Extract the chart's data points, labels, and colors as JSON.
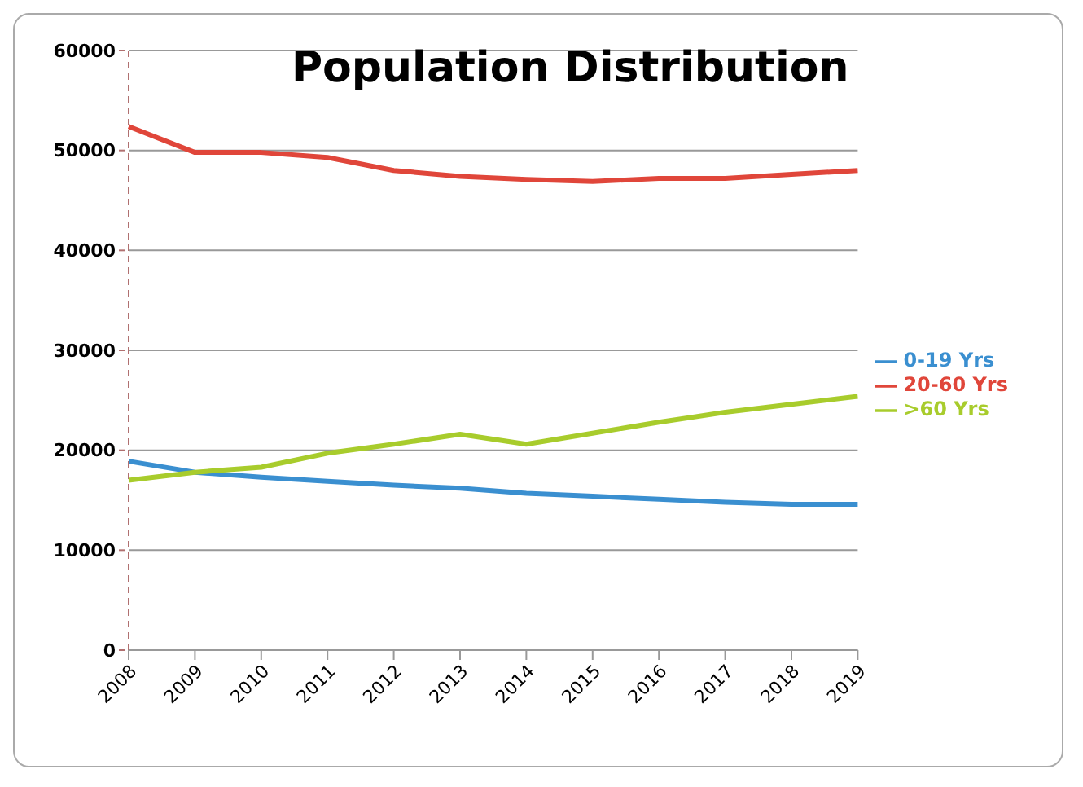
{
  "chart_data": {
    "type": "line",
    "title": "Population Distribution",
    "categories": [
      "2008",
      "2009",
      "2010",
      "2011",
      "2012",
      "2013",
      "2014",
      "2015",
      "2016",
      "2017",
      "2018",
      "2019"
    ],
    "series": [
      {
        "name": "0-19 Yrs",
        "color": "#3a8fd0",
        "values": [
          18900,
          17800,
          17300,
          16900,
          16500,
          16200,
          15700,
          15400,
          15100,
          14800,
          14600,
          14600
        ]
      },
      {
        "name": "20-60 Yrs",
        "color": "#e0463a",
        "values": [
          52400,
          49800,
          49800,
          49300,
          48000,
          47400,
          47100,
          46900,
          47200,
          47200,
          47600,
          48000
        ]
      },
      {
        "name": ">60 Yrs",
        "color": "#a8cc2c",
        "values": [
          17000,
          17800,
          18300,
          19700,
          20600,
          21600,
          20600,
          21700,
          22800,
          23800,
          24600,
          25400
        ]
      }
    ],
    "ylim": [
      0,
      60000
    ],
    "yticks": [
      0,
      10000,
      20000,
      30000,
      40000,
      50000,
      60000
    ],
    "grid": "y",
    "legend": "right",
    "marker": "none",
    "line_style": "solid"
  }
}
